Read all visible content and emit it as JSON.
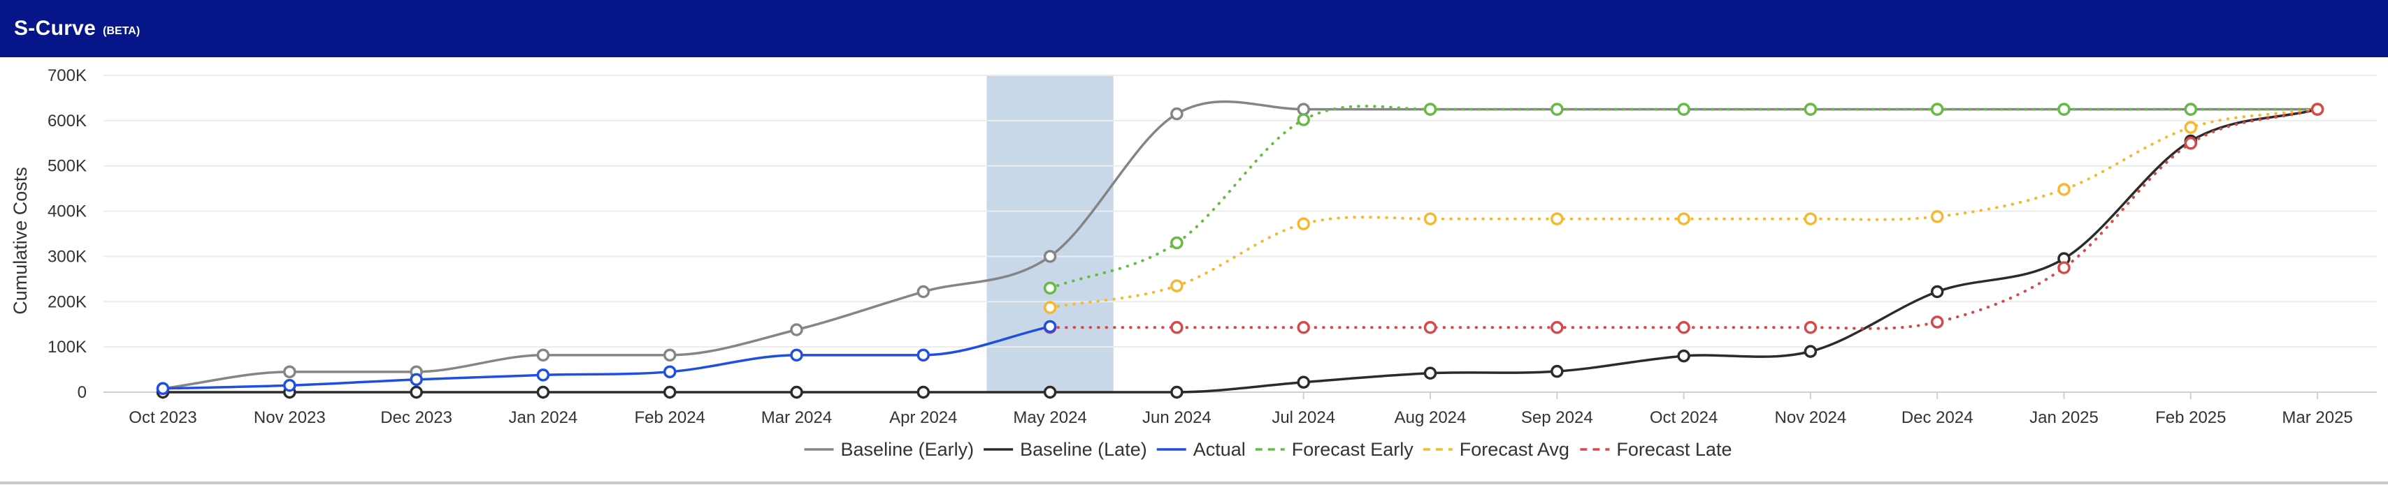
{
  "header": {
    "title": "S-Curve",
    "badge": "(BETA)"
  },
  "colors": {
    "header_bg": "#061689",
    "baseline_early": "#858585",
    "baseline_late": "#2b2b2b",
    "actual": "#1f4fe0",
    "forecast_early": "#66bb44",
    "forecast_avg": "#f5b82e",
    "forecast_late": "#d94848",
    "highlight_band": "#c8d8e8"
  },
  "chart_data": {
    "type": "line",
    "xlabel": "",
    "ylabel": "Cumulative Costs",
    "categories": [
      "Oct 2023",
      "Nov 2023",
      "Dec 2023",
      "Jan 2024",
      "Feb 2024",
      "Mar 2024",
      "Apr 2024",
      "May 2024",
      "Jun 2024",
      "Jul 2024",
      "Aug 2024",
      "Sep 2024",
      "Oct 2024",
      "Nov 2024",
      "Dec 2024",
      "Jan 2025",
      "Feb 2025",
      "Mar 2025"
    ],
    "ylim": [
      0,
      700000
    ],
    "yticks": [
      0,
      100000,
      200000,
      300000,
      400000,
      500000,
      600000,
      700000
    ],
    "ytick_labels": [
      "0",
      "100K",
      "200K",
      "300K",
      "400K",
      "500K",
      "600K",
      "700K"
    ],
    "grid": true,
    "legend_position": "bottom",
    "highlight_band": {
      "from": "Apr 2024",
      "to": "May 2024"
    },
    "series": [
      {
        "name": "Baseline (Early)",
        "key": "baseline_early",
        "style": "solid",
        "values": [
          8000,
          45000,
          45000,
          82000,
          82000,
          138000,
          222000,
          300000,
          615000,
          625000,
          625000,
          625000,
          625000,
          625000,
          625000,
          625000,
          625000,
          625000
        ]
      },
      {
        "name": "Baseline (Late)",
        "key": "baseline_late",
        "style": "solid",
        "values": [
          0,
          0,
          0,
          0,
          0,
          0,
          0,
          0,
          0,
          22000,
          42000,
          46000,
          80000,
          90000,
          222000,
          295000,
          555000,
          625000
        ]
      },
      {
        "name": "Actual",
        "key": "actual",
        "style": "solid",
        "values": [
          8000,
          15000,
          28000,
          38000,
          45000,
          82000,
          82000,
          145000,
          null,
          null,
          null,
          null,
          null,
          null,
          null,
          null,
          null,
          null
        ]
      },
      {
        "name": "Forecast Early",
        "key": "forecast_early",
        "style": "dotted",
        "values": [
          null,
          null,
          null,
          null,
          null,
          null,
          null,
          230000,
          330000,
          602000,
          625000,
          625000,
          625000,
          625000,
          625000,
          625000,
          625000,
          625000
        ]
      },
      {
        "name": "Forecast Avg",
        "key": "forecast_avg",
        "style": "dotted",
        "values": [
          null,
          null,
          null,
          null,
          null,
          null,
          null,
          187000,
          235000,
          372000,
          383000,
          383000,
          383000,
          383000,
          388000,
          448000,
          585000,
          625000
        ]
      },
      {
        "name": "Forecast Late",
        "key": "forecast_late",
        "style": "dotted",
        "values": [
          null,
          null,
          null,
          null,
          null,
          null,
          null,
          143000,
          143000,
          143000,
          143000,
          143000,
          143000,
          143000,
          155000,
          275000,
          550000,
          625000
        ]
      }
    ]
  }
}
